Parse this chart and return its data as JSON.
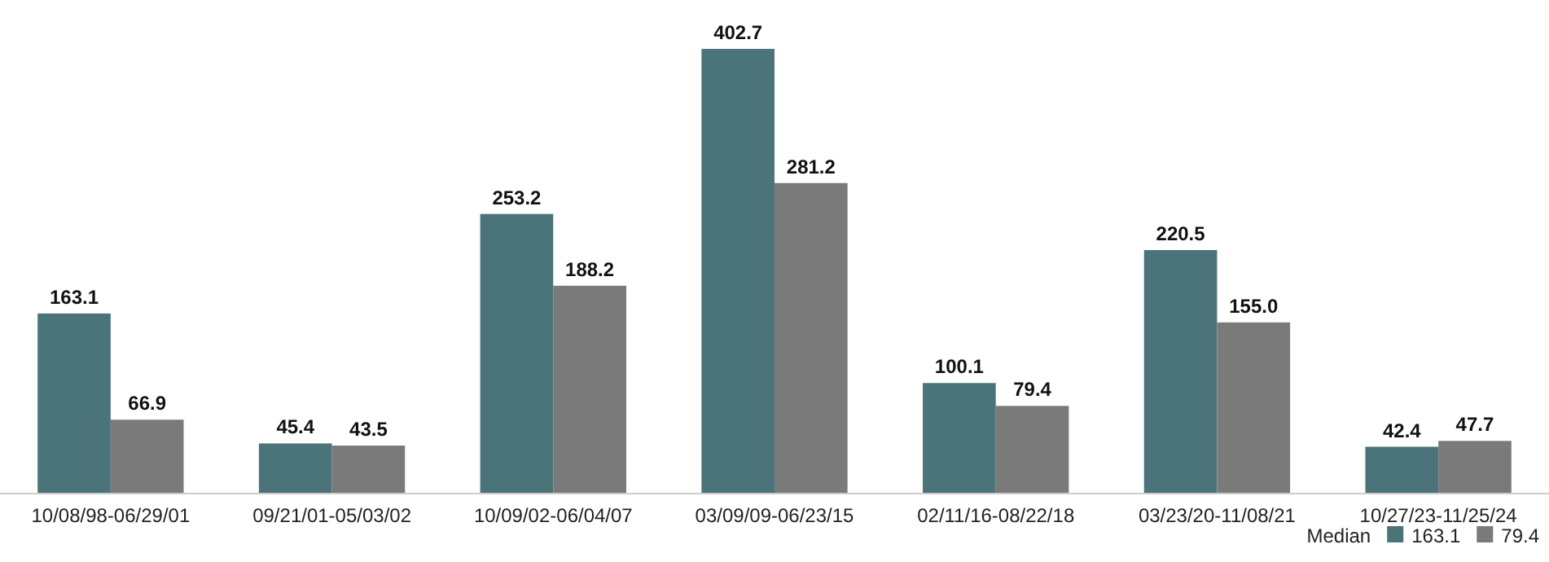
{
  "chart_data": {
    "type": "bar",
    "categories": [
      "10/08/98-06/29/01",
      "09/21/01-05/03/02",
      "10/09/02-06/04/07",
      "03/09/09-06/23/15",
      "02/11/16-08/22/18",
      "03/23/20-11/08/21",
      "10/27/23-11/25/24"
    ],
    "series": [
      {
        "color": "#4a7479",
        "values": [
          163.1,
          45.4,
          253.2,
          402.7,
          100.1,
          220.5,
          42.4
        ],
        "value_labels": [
          "163.1",
          "45.4",
          "253.2",
          "402.7",
          "100.1",
          "220.5",
          "42.4"
        ]
      },
      {
        "color": "#7a7a7a",
        "values": [
          66.9,
          43.5,
          188.2,
          281.2,
          79.4,
          155.0,
          47.7
        ],
        "value_labels": [
          "66.9",
          "43.5",
          "188.2",
          "281.2",
          "79.4",
          "155.0",
          "47.7"
        ]
      }
    ],
    "annotations": [
      "Median",
      "163.1",
      "79.4"
    ]
  }
}
